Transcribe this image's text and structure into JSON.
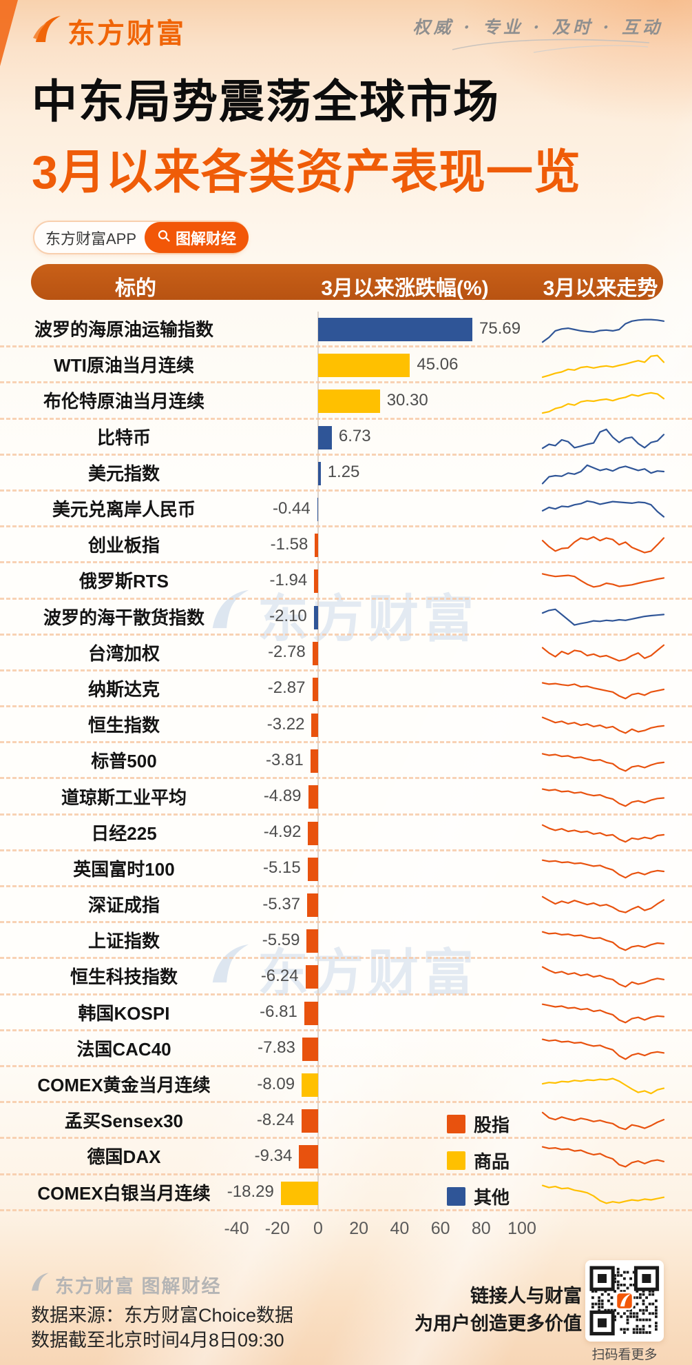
{
  "page": {
    "brand": "东方财富",
    "slogan": "权威 · 专业 · 及时 · 互动",
    "title": "中东局势震荡全球市场",
    "subtitle": "3月以来各类资产表现一览",
    "badge_app": "东方财富APP",
    "badge_channel": "图解财经",
    "watermark": "东方财富"
  },
  "table_header": {
    "col_target": "标的",
    "col_change": "3月以来涨跌幅(%)",
    "col_trend": "3月以来走势"
  },
  "legend": [
    {
      "label": "股指",
      "group": "stock",
      "color": "#e8520e"
    },
    {
      "label": "商品",
      "group": "commodity",
      "color": "#ffc000"
    },
    {
      "label": "其他",
      "group": "other",
      "color": "#2f5597"
    }
  ],
  "chart_data": {
    "type": "bar",
    "orientation": "horizontal",
    "title": "3月以来各类资产表现一览",
    "value_label": "3月以来涨跌幅(%)",
    "trend_label": "3月以来走势",
    "x_ticks": [
      -40,
      -20,
      0,
      20,
      40,
      60,
      80,
      100
    ],
    "xlim": [
      -55,
      115
    ],
    "grid": false,
    "legend_position": "right-bottom",
    "series_colors": {
      "stock": "#e8520e",
      "commodity": "#ffc000",
      "other": "#2f5597"
    },
    "rows": [
      {
        "name": "波罗的海原油运输指数",
        "value": 75.69,
        "group": "other",
        "trend": [
          2,
          20,
          45,
          52,
          55,
          50,
          45,
          42,
          40,
          46,
          48,
          45,
          50,
          72,
          82,
          86,
          88,
          88,
          86,
          82
        ]
      },
      {
        "name": "WTI原油当月连续",
        "value": 45.06,
        "group": "commodity",
        "trend": [
          5,
          12,
          20,
          25,
          35,
          32,
          42,
          45,
          40,
          45,
          48,
          44,
          50,
          55,
          62,
          68,
          62,
          85,
          88,
          62
        ]
      },
      {
        "name": "布伦特原油当月连续",
        "value": 30.3,
        "group": "commodity",
        "trend": [
          5,
          10,
          22,
          28,
          40,
          35,
          48,
          52,
          50,
          55,
          58,
          52,
          60,
          65,
          75,
          70,
          78,
          82,
          78,
          60
        ]
      },
      {
        "name": "比特币",
        "value": 6.73,
        "group": "other",
        "trend": [
          10,
          25,
          20,
          42,
          35,
          12,
          18,
          25,
          30,
          72,
          82,
          52,
          32,
          48,
          52,
          28,
          12,
          32,
          38,
          62
        ]
      },
      {
        "name": "美元指数",
        "value": 1.25,
        "group": "other",
        "trend": [
          12,
          38,
          42,
          40,
          52,
          48,
          58,
          82,
          72,
          62,
          68,
          60,
          72,
          78,
          70,
          62,
          68,
          52,
          60,
          58
        ]
      },
      {
        "name": "美元兑离岸人民币",
        "value": -0.44,
        "group": "other",
        "trend": [
          45,
          58,
          52,
          62,
          60,
          68,
          72,
          82,
          78,
          70,
          75,
          80,
          78,
          76,
          74,
          78,
          76,
          68,
          42,
          22
        ]
      },
      {
        "name": "创业板指",
        "value": -1.58,
        "group": "stock",
        "trend": [
          68,
          45,
          28,
          38,
          40,
          62,
          78,
          72,
          82,
          68,
          78,
          72,
          52,
          62,
          42,
          32,
          22,
          28,
          52,
          78
        ]
      },
      {
        "name": "俄罗斯RTS",
        "value": -1.94,
        "group": "stock",
        "trend": [
          78,
          72,
          68,
          70,
          72,
          68,
          52,
          38,
          28,
          32,
          42,
          38,
          30,
          33,
          36,
          42,
          48,
          52,
          58,
          62
        ]
      },
      {
        "name": "波罗的海干散货指数",
        "value": -2.1,
        "group": "other",
        "trend": [
          68,
          78,
          82,
          62,
          42,
          22,
          28,
          32,
          38,
          36,
          40,
          38,
          42,
          40,
          45,
          50,
          55,
          58,
          60,
          62
        ]
      },
      {
        "name": "台湾加权",
        "value": -2.78,
        "group": "stock",
        "trend": [
          72,
          52,
          38,
          58,
          48,
          62,
          58,
          42,
          48,
          38,
          42,
          32,
          22,
          28,
          42,
          52,
          32,
          42,
          62,
          82
        ]
      },
      {
        "name": "纳斯达克",
        "value": -2.87,
        "group": "stock",
        "trend": [
          75,
          70,
          72,
          68,
          65,
          70,
          60,
          62,
          55,
          50,
          45,
          40,
          25,
          15,
          30,
          35,
          28,
          40,
          45,
          50
        ]
      },
      {
        "name": "恒生指数",
        "value": -3.22,
        "group": "stock",
        "trend": [
          80,
          70,
          60,
          65,
          55,
          60,
          50,
          55,
          45,
          50,
          40,
          45,
          30,
          20,
          35,
          25,
          30,
          40,
          45,
          48
        ]
      },
      {
        "name": "标普500",
        "value": -3.81,
        "group": "stock",
        "trend": [
          78,
          72,
          75,
          68,
          70,
          62,
          65,
          58,
          52,
          55,
          45,
          40,
          22,
          12,
          28,
          32,
          25,
          35,
          42,
          45
        ]
      },
      {
        "name": "道琼斯工业平均",
        "value": -4.89,
        "group": "stock",
        "trend": [
          80,
          75,
          78,
          70,
          72,
          65,
          68,
          60,
          55,
          58,
          48,
          42,
          25,
          15,
          30,
          35,
          28,
          38,
          44,
          46
        ]
      },
      {
        "name": "日经225",
        "value": -4.92,
        "group": "stock",
        "trend": [
          82,
          70,
          62,
          68,
          58,
          62,
          55,
          58,
          48,
          52,
          42,
          45,
          28,
          18,
          32,
          28,
          35,
          30,
          42,
          45
        ]
      },
      {
        "name": "英国富时100",
        "value": -5.15,
        "group": "stock",
        "trend": [
          85,
          80,
          82,
          76,
          78,
          72,
          74,
          68,
          62,
          65,
          55,
          48,
          30,
          18,
          32,
          38,
          30,
          40,
          45,
          42
        ]
      },
      {
        "name": "深证成指",
        "value": -5.37,
        "group": "stock",
        "trend": [
          82,
          68,
          55,
          65,
          58,
          68,
          60,
          52,
          58,
          48,
          52,
          42,
          28,
          22,
          35,
          45,
          30,
          38,
          55,
          70
        ]
      },
      {
        "name": "上证指数",
        "value": -5.59,
        "group": "stock",
        "trend": [
          85,
          78,
          80,
          74,
          76,
          70,
          72,
          65,
          60,
          62,
          52,
          45,
          25,
          15,
          28,
          32,
          26,
          36,
          42,
          40
        ]
      },
      {
        "name": "恒生科技指数",
        "value": -6.24,
        "group": "stock",
        "trend": [
          88,
          75,
          65,
          70,
          60,
          65,
          55,
          60,
          50,
          55,
          45,
          40,
          22,
          12,
          30,
          22,
          28,
          38,
          44,
          40
        ]
      },
      {
        "name": "韩国KOSPI",
        "value": -6.81,
        "group": "stock",
        "trend": [
          85,
          80,
          75,
          78,
          70,
          72,
          65,
          68,
          58,
          62,
          52,
          45,
          25,
          15,
          30,
          35,
          25,
          35,
          40,
          38
        ]
      },
      {
        "name": "法国CAC40",
        "value": -7.83,
        "group": "stock",
        "trend": [
          88,
          82,
          85,
          78,
          80,
          74,
          76,
          68,
          62,
          65,
          55,
          48,
          25,
          12,
          28,
          34,
          26,
          36,
          40,
          36
        ]
      },
      {
        "name": "COMEX黄金当月连续",
        "value": -8.09,
        "group": "commodity",
        "trend": [
          55,
          60,
          58,
          64,
          62,
          68,
          65,
          70,
          68,
          72,
          70,
          75,
          65,
          50,
          35,
          22,
          28,
          18,
          32,
          38
        ]
      },
      {
        "name": "孟买Sensex30",
        "value": -8.24,
        "group": "stock",
        "trend": [
          82,
          62,
          55,
          65,
          58,
          52,
          60,
          55,
          48,
          52,
          45,
          40,
          25,
          18,
          35,
          30,
          22,
          32,
          45,
          55
        ]
      },
      {
        "name": "德国DAX",
        "value": -9.34,
        "group": "stock",
        "trend": [
          88,
          82,
          84,
          78,
          80,
          72,
          75,
          65,
          58,
          62,
          50,
          42,
          20,
          12,
          28,
          34,
          24,
          34,
          38,
          32
        ]
      },
      {
        "name": "COMEX白银当月连续",
        "value": -18.29,
        "group": "commodity",
        "trend": [
          80,
          72,
          76,
          68,
          70,
          62,
          58,
          52,
          40,
          22,
          12,
          18,
          14,
          20,
          25,
          22,
          28,
          25,
          30,
          35
        ]
      }
    ]
  },
  "footer": {
    "brand_line": "东方财富 图解财经",
    "source_line1": "数据来源：东方财富Choice数据",
    "source_line2": "数据截至北京时间4月8日09:30",
    "slogan_line1": "链接人与财富",
    "slogan_line2": "为用户创造更多价值",
    "qr_caption": "扫码看更多"
  }
}
